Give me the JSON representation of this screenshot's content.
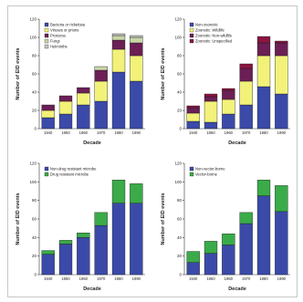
{
  "chart_data": [
    {
      "type": "bar",
      "stacked": true,
      "categories": [
        "1940",
        "1950",
        "1960",
        "1970",
        "1980",
        "1990"
      ],
      "xlabel": "Decade",
      "ylabel": "Number of EID events",
      "ylim": [
        0,
        120
      ],
      "yticks": [
        0,
        20,
        40,
        60,
        80,
        100,
        120
      ],
      "grid": false,
      "legend_position": "top-left",
      "series": [
        {
          "name": "Bacteria or rickettsia",
          "color": "#3b4aa8",
          "values": [
            12,
            16,
            26,
            30,
            62,
            52
          ]
        },
        {
          "name": "Viruses or prions",
          "color": "#f2f27a",
          "values": [
            8,
            14,
            13,
            22,
            25,
            28
          ]
        },
        {
          "name": "Protozoa",
          "color": "#6b1f55",
          "values": [
            6,
            6,
            6,
            12,
            10,
            14
          ]
        },
        {
          "name": "Fungi",
          "color": "#c9d6a8",
          "values": [
            0,
            0,
            0,
            4,
            5,
            6
          ]
        },
        {
          "name": "Helminths",
          "color": "#c4c4c4",
          "values": [
            0,
            0,
            0,
            0,
            2,
            2
          ]
        }
      ]
    },
    {
      "type": "bar",
      "stacked": true,
      "categories": [
        "1940",
        "1950",
        "1960",
        "1970",
        "1980",
        "1990"
      ],
      "xlabel": "Decade",
      "ylabel": "Number of EID events",
      "ylim": [
        0,
        120
      ],
      "yticks": [
        0,
        20,
        40,
        60,
        80,
        100,
        120
      ],
      "grid": false,
      "legend_position": "top-left",
      "series": [
        {
          "name": "Non-zoonotic",
          "color": "#3b4aa8",
          "values": [
            8,
            7,
            16,
            26,
            46,
            38
          ]
        },
        {
          "name": "Zoonotic: Wildlife",
          "color": "#f2f27a",
          "values": [
            9,
            23,
            16,
            26,
            34,
            42
          ]
        },
        {
          "name": "Zoonotic: Non-wildlife",
          "color": "#6b1f55",
          "values": [
            6,
            5,
            10,
            14,
            14,
            14
          ]
        },
        {
          "name": "Zoonotic: Unspecified",
          "color": "#8a1540",
          "values": [
            2,
            3,
            2,
            5,
            7,
            2
          ]
        }
      ]
    },
    {
      "type": "bar",
      "stacked": true,
      "categories": [
        "1940",
        "1950",
        "1960",
        "1970",
        "1980",
        "1990"
      ],
      "xlabel": "Decade",
      "ylabel": "Number of EID events",
      "ylim": [
        0,
        120
      ],
      "yticks": [
        0,
        20,
        40,
        60,
        80,
        100,
        120
      ],
      "grid": false,
      "legend_position": "top-left",
      "series": [
        {
          "name": "Non-drug resistant microbe",
          "color": "#3b4aa8",
          "values": [
            22,
            33,
            40,
            53,
            77,
            77
          ]
        },
        {
          "name": "Drug resistant microbe",
          "color": "#3aab48",
          "values": [
            4,
            4,
            5,
            14,
            25,
            21
          ]
        }
      ]
    },
    {
      "type": "bar",
      "stacked": true,
      "categories": [
        "1940",
        "1950",
        "1960",
        "1970",
        "1980",
        "1990"
      ],
      "xlabel": "Decade",
      "ylabel": "Number of EID events",
      "ylim": [
        0,
        120
      ],
      "yticks": [
        0,
        20,
        40,
        60,
        80,
        100,
        120
      ],
      "grid": false,
      "legend_position": "top-left",
      "series": [
        {
          "name": "Non-vector-borne",
          "color": "#3b4aa8",
          "values": [
            13,
            23,
            32,
            55,
            85,
            68
          ]
        },
        {
          "name": "Vector-borne",
          "color": "#3aab48",
          "values": [
            12,
            13,
            12,
            12,
            17,
            28
          ]
        }
      ]
    }
  ]
}
